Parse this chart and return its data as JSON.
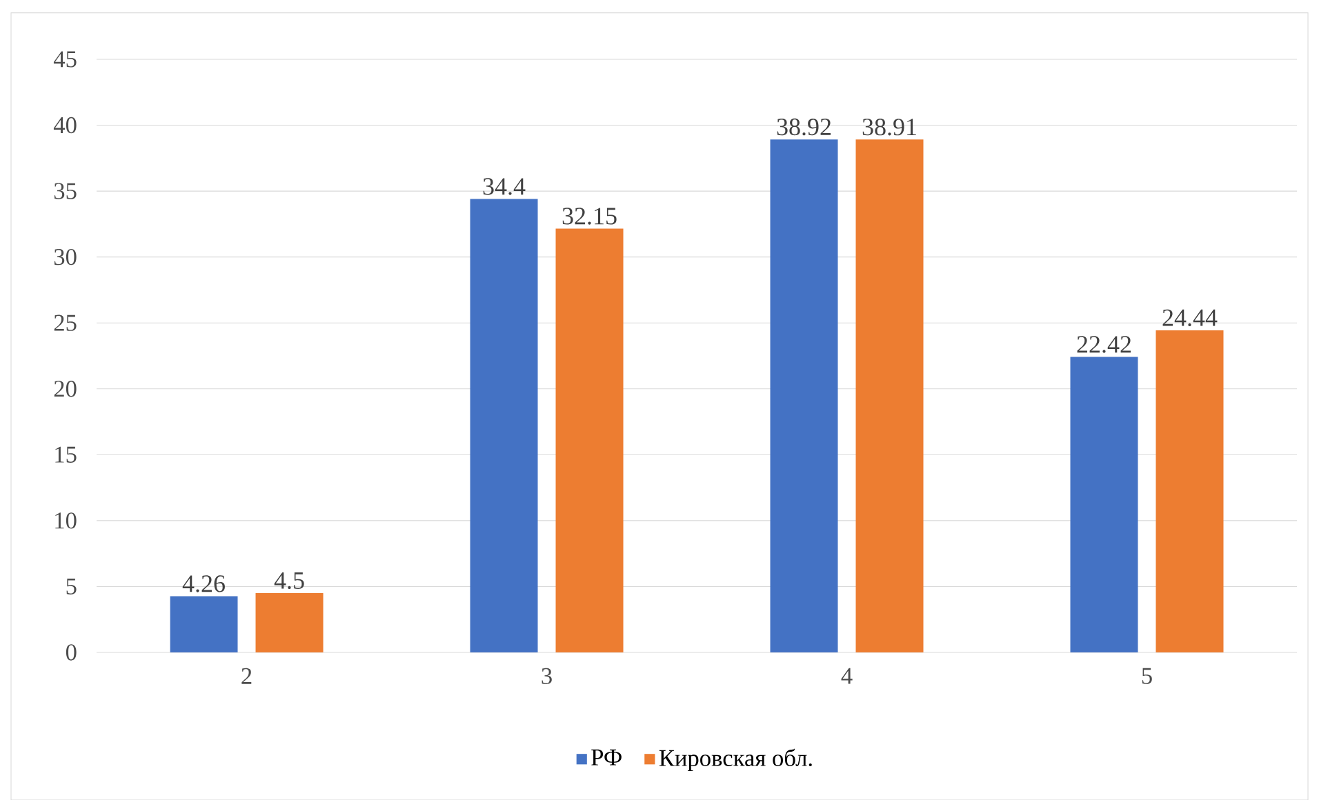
{
  "chart_data": {
    "type": "bar",
    "categories": [
      "2",
      "3",
      "4",
      "5"
    ],
    "series": [
      {
        "name": "РФ",
        "color": "#4472c4",
        "values": [
          4.26,
          34.4,
          38.92,
          22.42
        ]
      },
      {
        "name": "Кировская обл.",
        "color": "#ed7d31",
        "values": [
          4.5,
          32.15,
          38.91,
          24.44
        ]
      }
    ],
    "ylim": [
      0,
      45
    ],
    "yticks": [
      0,
      5,
      10,
      15,
      20,
      25,
      30,
      35,
      40,
      45
    ],
    "grid": "y",
    "legend": "bottom",
    "data_labels": true
  }
}
